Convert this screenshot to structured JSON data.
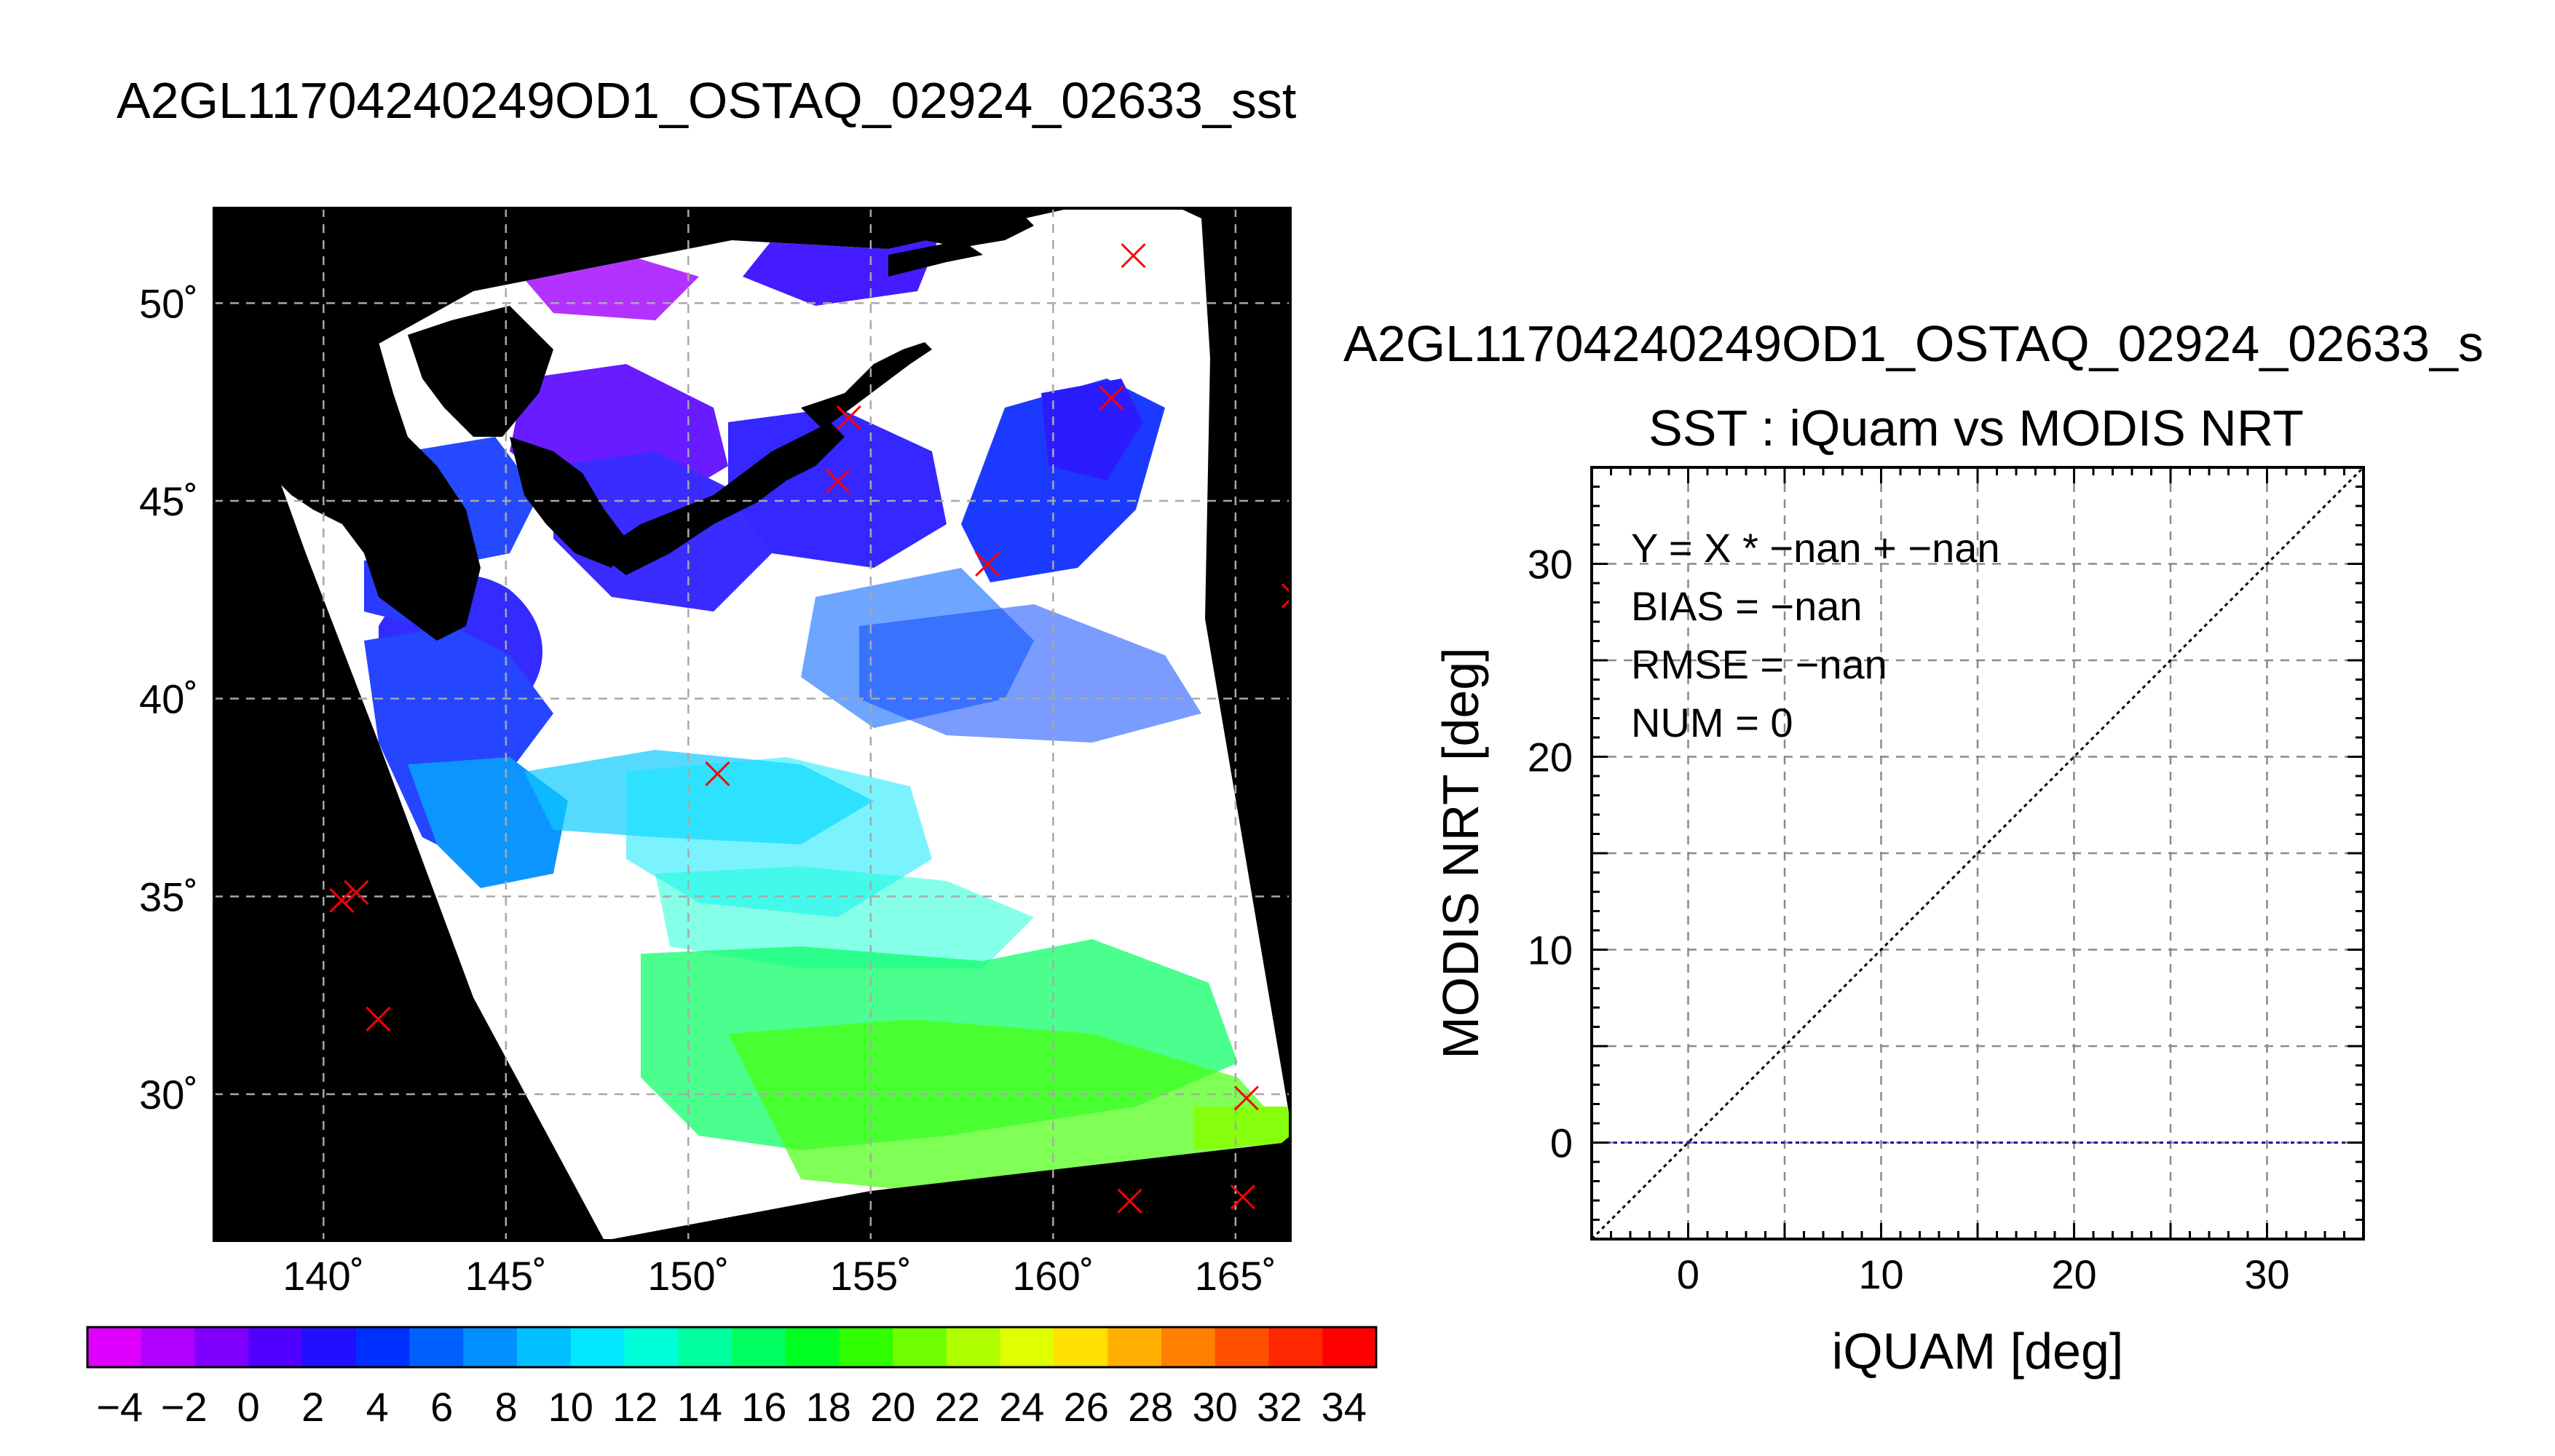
{
  "main_title": "A2GL11704240249OD1_OSTAQ_02924_02633_sst",
  "scatter_filename": "A2GL11704240249OD1_OSTAQ_02924_02633_s",
  "chart_data": [
    {
      "type": "heatmap",
      "title": "A2GL11704240249OD1_OSTAQ_02924_02633_sst",
      "description_variable": "sst",
      "x_ticks": [
        140,
        145,
        150,
        155,
        160,
        165
      ],
      "y_ticks": [
        30,
        35,
        40,
        45,
        50
      ],
      "x_tick_labels": [
        "140˚",
        "145˚",
        "150˚",
        "155˚",
        "160˚",
        "165˚"
      ],
      "y_tick_labels": [
        "30˚",
        "35˚",
        "40˚",
        "45˚",
        "50˚"
      ],
      "xlim": [
        137.0,
        166.5
      ],
      "ylim": [
        26.3,
        52.4
      ],
      "grid": true,
      "land_color": "#000000",
      "cloud_color": "#ffffff",
      "colorbar": {
        "min": -5,
        "max": 35,
        "step": 2,
        "tick_values": [
          -4,
          -2,
          0,
          2,
          4,
          6,
          8,
          10,
          12,
          14,
          16,
          18,
          20,
          22,
          24,
          26,
          28,
          30,
          32,
          34
        ],
        "tick_labels": [
          "−4",
          "−2",
          "0",
          "2",
          "4",
          "6",
          "8",
          "10",
          "12",
          "14",
          "16",
          "18",
          "20",
          "22",
          "24",
          "26",
          "28",
          "30",
          "32",
          "34"
        ],
        "colors": [
          "#e000ff",
          "#b000ff",
          "#8000ff",
          "#5000ff",
          "#2010ff",
          "#0030ff",
          "#0060ff",
          "#0090ff",
          "#00c0ff",
          "#00e8ff",
          "#00ffd8",
          "#00ffa0",
          "#00ff60",
          "#00ff20",
          "#30ff00",
          "#70ff00",
          "#b0ff00",
          "#e0ff00",
          "#ffe000",
          "#ffb000",
          "#ff8000",
          "#ff5000",
          "#ff2800",
          "#ff0000"
        ]
      },
      "iquam_points": [
        {
          "lon": 162.2,
          "lat": 51.2
        },
        {
          "lon": 154.4,
          "lat": 47.1
        },
        {
          "lon": 161.6,
          "lat": 47.6
        },
        {
          "lon": 154.1,
          "lat": 45.5
        },
        {
          "lon": 158.2,
          "lat": 43.4
        },
        {
          "lon": 166.6,
          "lat": 42.6
        },
        {
          "lon": 150.8,
          "lat": 38.1
        },
        {
          "lon": 140.5,
          "lat": 34.9
        },
        {
          "lon": 140.9,
          "lat": 35.1
        },
        {
          "lon": 141.5,
          "lat": 31.9
        },
        {
          "lon": 165.3,
          "lat": 29.9
        },
        {
          "lon": 162.1,
          "lat": 27.3
        },
        {
          "lon": 165.2,
          "lat": 27.4
        }
      ],
      "marker_color": "#ff0000"
    },
    {
      "type": "scatter",
      "title": "SST : iQuam vs MODIS NRT",
      "xlabel": "iQUAM [deg]",
      "ylabel": "MODIS NRT [deg]",
      "xlim": [
        -5,
        35
      ],
      "ylim": [
        -5,
        35
      ],
      "x_ticks": [
        0,
        10,
        20,
        30
      ],
      "y_ticks": [
        0,
        10,
        20,
        30
      ],
      "grid": true,
      "grid_step": 5,
      "stats": [
        "Y = X * −nan + −nan",
        "BIAS = −nan",
        "RMSE = −nan",
        "NUM = 0"
      ],
      "points": [],
      "reference_lines": [
        {
          "kind": "identity",
          "equation": "y = x",
          "color": "#000000",
          "style": "dotted"
        },
        {
          "kind": "horizontal",
          "y": 0,
          "color": "#1010b0",
          "style": "dotted"
        }
      ]
    }
  ]
}
